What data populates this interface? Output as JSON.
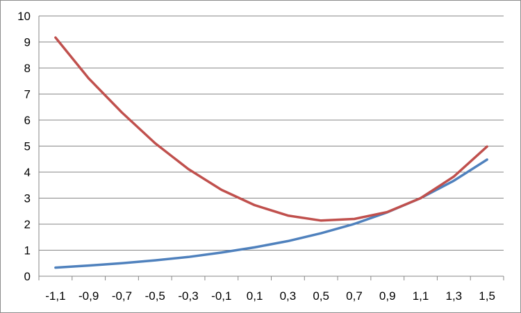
{
  "chart_data": {
    "type": "line",
    "title": "",
    "xlabel": "",
    "ylabel": "",
    "categories": [
      "-1,1",
      "-0,9",
      "-0,7",
      "-0,5",
      "-0,3",
      "-0,1",
      "0,1",
      "0,3",
      "0,5",
      "0,7",
      "0,9",
      "1,1",
      "1,3",
      "1,5"
    ],
    "ylim": [
      0,
      10
    ],
    "yticks": [
      "0",
      "1",
      "2",
      "3",
      "4",
      "5",
      "6",
      "7",
      "8",
      "9",
      "10"
    ],
    "grid": true,
    "legend": "none",
    "series": [
      {
        "color": "#4f81bd",
        "values": [
          0.33,
          0.41,
          0.5,
          0.61,
          0.74,
          0.91,
          1.11,
          1.35,
          1.65,
          2.01,
          2.46,
          3.0,
          3.67,
          4.48
        ]
      },
      {
        "color": "#c0504d",
        "values": [
          9.17,
          7.6,
          6.29,
          5.11,
          4.12,
          3.32,
          2.73,
          2.33,
          2.14,
          2.2,
          2.47,
          3.0,
          3.83,
          4.98
        ]
      }
    ]
  }
}
